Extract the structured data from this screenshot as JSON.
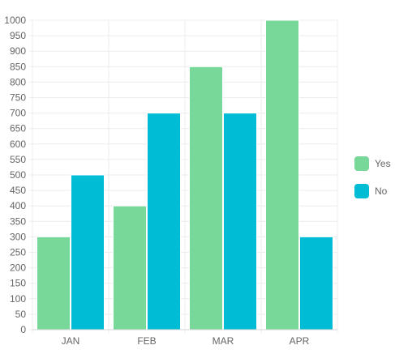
{
  "chart_data": {
    "type": "bar",
    "categories": [
      "JAN",
      "FEB",
      "MAR",
      "APR"
    ],
    "series": [
      {
        "name": "Yes",
        "values": [
          300,
          400,
          850,
          1000
        ],
        "color": "#77d89a"
      },
      {
        "name": "No",
        "values": [
          500,
          700,
          700,
          300
        ],
        "color": "#00bcd4"
      }
    ],
    "ylim": [
      0,
      1000
    ],
    "yticks": [
      0,
      50,
      100,
      150,
      200,
      250,
      300,
      350,
      400,
      450,
      500,
      550,
      600,
      650,
      700,
      750,
      800,
      850,
      900,
      950,
      1000
    ],
    "grid": true,
    "legend_position": "right"
  }
}
